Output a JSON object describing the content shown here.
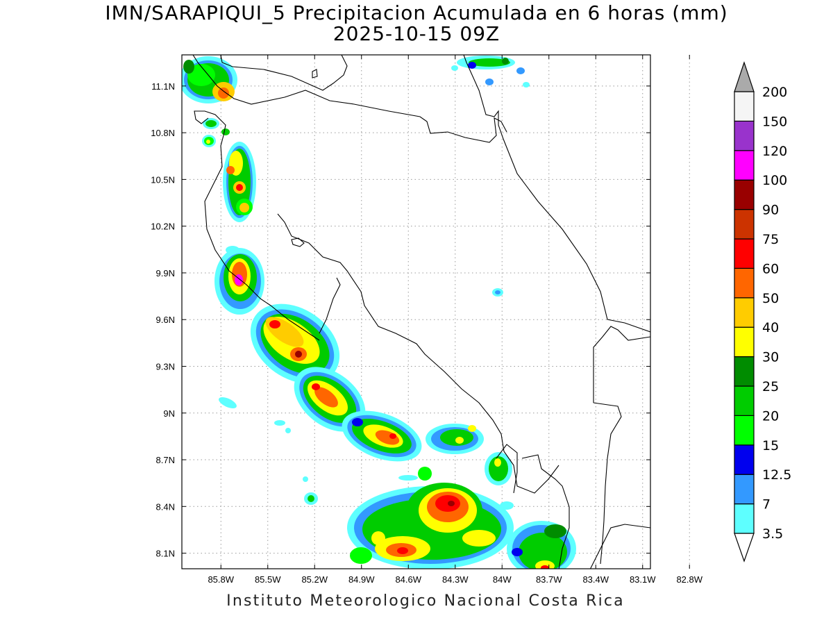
{
  "title": {
    "line1": "IMN/SARAPIQUI_5 Precipitacion Acumulada en 6 horas (mm)",
    "line2": "2025-10-15 09Z"
  },
  "footer": "Instituto Meteorologico Nacional Costa Rica",
  "map": {
    "lon_range": [
      -86.05,
      -83.05
    ],
    "lat_range": [
      8.0,
      11.3
    ],
    "lon_ticks": [
      {
        "value": -85.8,
        "label": "85.8W"
      },
      {
        "value": -85.5,
        "label": "85.5W"
      },
      {
        "value": -85.2,
        "label": "85.2W"
      },
      {
        "value": -84.9,
        "label": "84.9W"
      },
      {
        "value": -84.6,
        "label": "84.6W"
      },
      {
        "value": -84.3,
        "label": "84.3W"
      },
      {
        "value": -84.0,
        "label": "84W"
      },
      {
        "value": -83.7,
        "label": "83.7W"
      },
      {
        "value": -83.4,
        "label": "83.4W"
      },
      {
        "value": -83.1,
        "label": "83.1W"
      },
      {
        "value": -82.8,
        "label": "82.8W"
      }
    ],
    "lat_ticks": [
      {
        "value": 8.1,
        "label": "8.1N"
      },
      {
        "value": 8.4,
        "label": "8.4N"
      },
      {
        "value": 8.7,
        "label": "8.7N"
      },
      {
        "value": 9.0,
        "label": "9N"
      },
      {
        "value": 9.3,
        "label": "9.3N"
      },
      {
        "value": 9.6,
        "label": "9.6N"
      },
      {
        "value": 9.9,
        "label": "9.9N"
      },
      {
        "value": 10.2,
        "label": "10.2N"
      },
      {
        "value": 10.5,
        "label": "10.5N"
      },
      {
        "value": 10.8,
        "label": "10.8N"
      },
      {
        "value": 11.1,
        "label": "11.1N"
      }
    ],
    "grid": true
  },
  "colorbar": {
    "levels": [
      "3.5",
      "7",
      "12.5",
      "15",
      "20",
      "25",
      "30",
      "40",
      "50",
      "60",
      "75",
      "90",
      "100",
      "120",
      "150",
      "200"
    ],
    "colors": [
      "#5effff",
      "#3399ff",
      "#0000ee",
      "#00ff00",
      "#00cc00",
      "#008c00",
      "#ffff00",
      "#ffcc00",
      "#ff6600",
      "#ff0000",
      "#cc3300",
      "#990000",
      "#ff00ff",
      "#9933cc",
      "#f5f5f5",
      "#aaaaaa"
    ]
  }
}
